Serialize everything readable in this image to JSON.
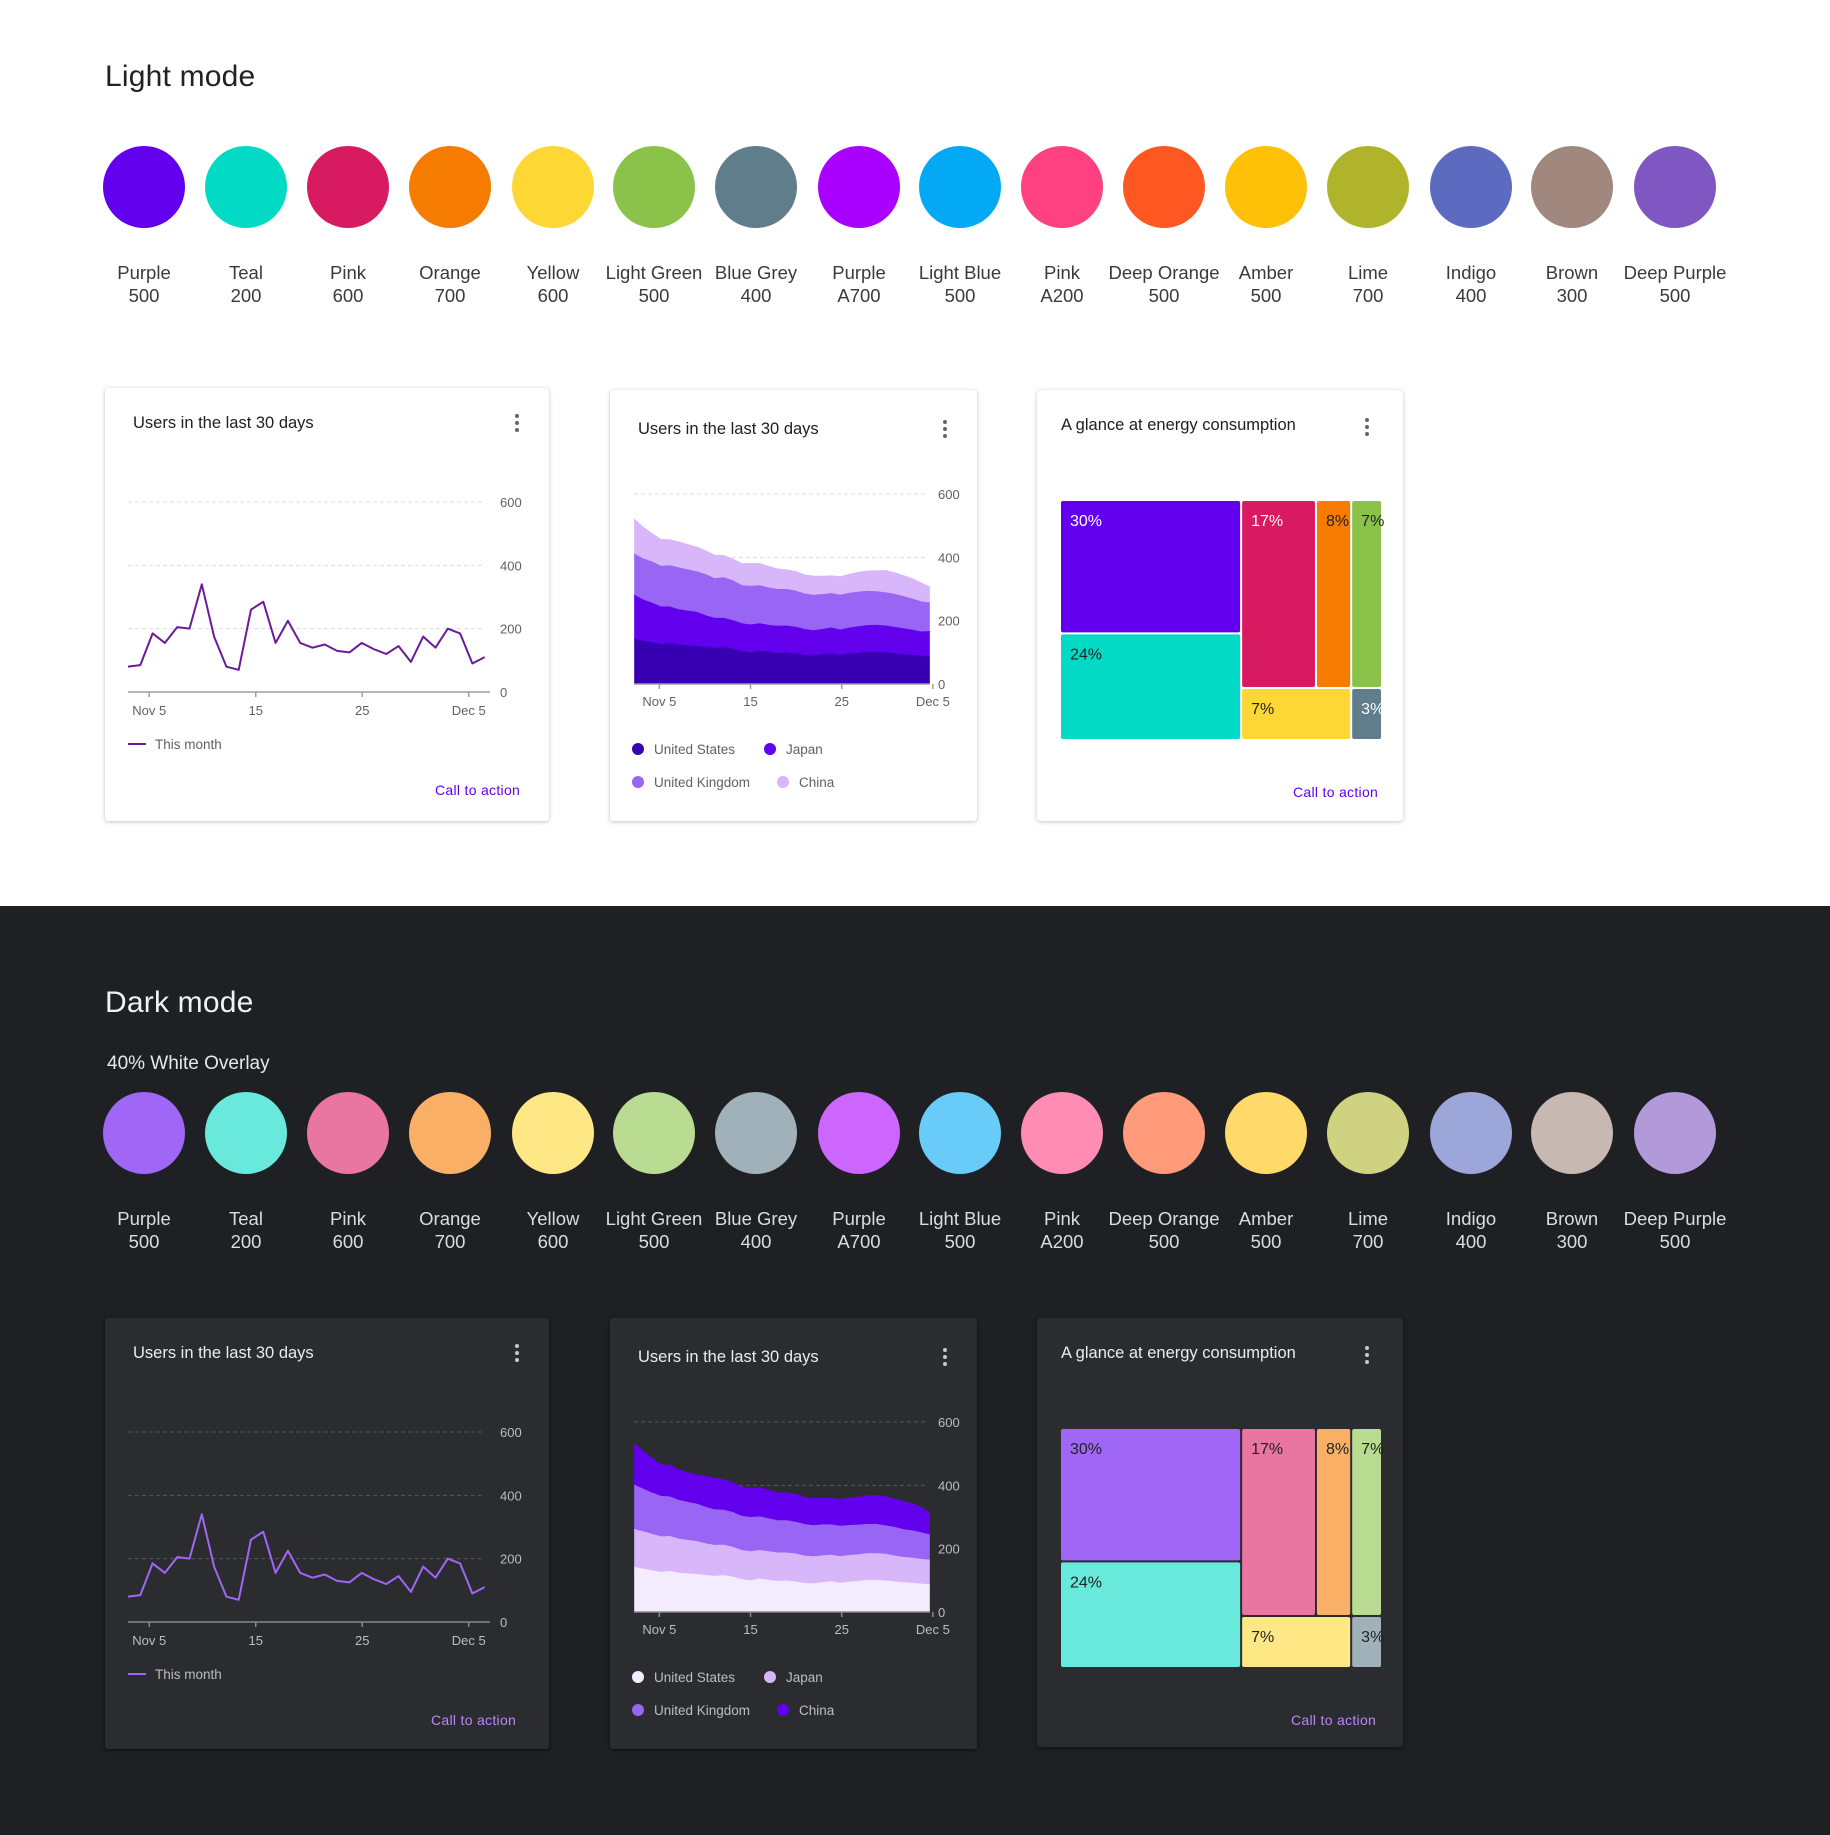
{
  "colors": {
    "light_bg": "#ffffff",
    "dark_bg": "#1f2023",
    "card_dark_bg": "#2b2c30",
    "cta_light": "#6200ee",
    "cta_dark": "#bb86fc"
  },
  "light": {
    "title": "Light mode",
    "swatches": [
      {
        "name": "Purple",
        "shade": "500",
        "color": "#6200ee"
      },
      {
        "name": "Teal",
        "shade": "200",
        "color": "#03dac5"
      },
      {
        "name": "Pink",
        "shade": "600",
        "color": "#d81b60"
      },
      {
        "name": "Orange",
        "shade": "700",
        "color": "#f57c00"
      },
      {
        "name": "Yellow",
        "shade": "600",
        "color": "#fdd835"
      },
      {
        "name": "Light Green",
        "shade": "500",
        "color": "#8bc34a"
      },
      {
        "name": "Blue Grey",
        "shade": "400",
        "color": "#607d8b"
      },
      {
        "name": "Purple",
        "shade": "A700",
        "color": "#aa00ff"
      },
      {
        "name": "Light Blue",
        "shade": "500",
        "color": "#03a9f4"
      },
      {
        "name": "Pink",
        "shade": "A200",
        "color": "#ff4081"
      },
      {
        "name": "Deep Orange",
        "shade": "500",
        "color": "#ff5722"
      },
      {
        "name": "Amber",
        "shade": "500",
        "color": "#ffc107"
      },
      {
        "name": "Lime",
        "shade": "700",
        "color": "#afb42b"
      },
      {
        "name": "Indigo",
        "shade": "400",
        "color": "#5c6bc0"
      },
      {
        "name": "Brown",
        "shade": "300",
        "color": "#a1887f"
      },
      {
        "name": "Deep Purple",
        "shade": "500",
        "color": "#7e57c2"
      }
    ]
  },
  "dark": {
    "title": "Dark mode",
    "overlay_label": "40% White Overlay",
    "swatches": [
      {
        "name": "Purple",
        "shade": "500",
        "color": "#a066f5"
      },
      {
        "name": "Teal",
        "shade": "200",
        "color": "#68e9dc"
      },
      {
        "name": "Pink",
        "shade": "600",
        "color": "#e876a0"
      },
      {
        "name": "Orange",
        "shade": "700",
        "color": "#f9b066"
      },
      {
        "name": "Yellow",
        "shade": "600",
        "color": "#fee886"
      },
      {
        "name": "Light Green",
        "shade": "500",
        "color": "#b9db92"
      },
      {
        "name": "Blue Grey",
        "shade": "400",
        "color": "#a0b1b9"
      },
      {
        "name": "Purple",
        "shade": "A700",
        "color": "#cc66ff"
      },
      {
        "name": "Light Blue",
        "shade": "500",
        "color": "#68cbf8"
      },
      {
        "name": "Pink",
        "shade": "A200",
        "color": "#ff8cb3"
      },
      {
        "name": "Deep Orange",
        "shade": "500",
        "color": "#ff9a7a"
      },
      {
        "name": "Amber",
        "shade": "500",
        "color": "#ffda6a"
      },
      {
        "name": "Lime",
        "shade": "700",
        "color": "#cfd280"
      },
      {
        "name": "Indigo",
        "shade": "400",
        "color": "#9da6d9"
      },
      {
        "name": "Brown",
        "shade": "300",
        "color": "#c7b8b2"
      },
      {
        "name": "Deep Purple",
        "shade": "500",
        "color": "#b29ada"
      }
    ]
  },
  "chart_data": [
    {
      "id": "light-line",
      "type": "line",
      "title": "Users in the last 30 days",
      "x_tick_labels": [
        "Nov 5",
        "15",
        "25",
        "Dec 5"
      ],
      "x_tick_index": [
        2,
        12,
        22,
        32
      ],
      "y_ticks": [
        0,
        200,
        400,
        600
      ],
      "ylim": [
        0,
        600
      ],
      "grid": true,
      "legend_position": "bottom-left",
      "series": [
        {
          "name": "This month",
          "color": "#6a1b9a",
          "values": [
            80,
            85,
            185,
            155,
            205,
            200,
            340,
            175,
            80,
            70,
            260,
            285,
            155,
            225,
            155,
            140,
            150,
            130,
            125,
            155,
            135,
            120,
            145,
            95,
            175,
            140,
            200,
            185,
            90,
            110
          ]
        }
      ],
      "cta": "Call to action"
    },
    {
      "id": "light-area",
      "type": "area",
      "title": "Users in the last 30 days",
      "x_tick_labels": [
        "Nov 5",
        "15",
        "25",
        "Dec 5"
      ],
      "x_tick_index": [
        3,
        13,
        23,
        33
      ],
      "y_ticks": [
        0,
        200,
        400,
        600
      ],
      "ylim": [
        0,
        600
      ],
      "grid": true,
      "stacked": true,
      "legend_position": "bottom-left",
      "series": [
        {
          "name": "United States",
          "color": "#3700b3",
          "values": [
            140,
            135,
            130,
            125,
            128,
            122,
            120,
            118,
            115,
            112,
            115,
            110,
            102,
            98,
            104,
            100,
            96,
            98,
            95,
            90,
            88,
            92,
            95,
            90,
            94,
            96,
            100,
            100,
            98,
            95,
            92,
            90,
            88,
            85
          ]
        },
        {
          "name": "Japan",
          "color": "#6200ee",
          "values": [
            140,
            130,
            125,
            118,
            115,
            112,
            110,
            108,
            100,
            95,
            92,
            90,
            88,
            88,
            86,
            85,
            86,
            85,
            84,
            82,
            80,
            80,
            82,
            80,
            82,
            84,
            84,
            85,
            85,
            84,
            82,
            80,
            76,
            80
          ]
        },
        {
          "name": "United Kingdom",
          "color": "#9965f4",
          "values": [
            130,
            130,
            130,
            128,
            130,
            132,
            130,
            128,
            130,
            125,
            128,
            126,
            120,
            122,
            120,
            118,
            116,
            115,
            114,
            112,
            112,
            110,
            108,
            110,
            110,
            110,
            108,
            106,
            105,
            104,
            102,
            98,
            95,
            90
          ]
        },
        {
          "name": "China",
          "color": "#d7b6f9",
          "values": [
            110,
            100,
            90,
            85,
            82,
            82,
            80,
            78,
            75,
            74,
            70,
            68,
            70,
            72,
            70,
            68,
            65,
            62,
            62,
            60,
            60,
            58,
            56,
            58,
            60,
            62,
            64,
            66,
            70,
            68,
            66,
            64,
            60,
            50
          ]
        }
      ],
      "cta": ""
    },
    {
      "id": "light-treemap",
      "type": "treemap",
      "title": "A glance at energy consumption",
      "cells": [
        {
          "label": "30%",
          "value": 30,
          "color": "#6200ee",
          "text_color": "#ffffff"
        },
        {
          "label": "24%",
          "value": 24,
          "color": "#03dac5",
          "text_color": "#222222"
        },
        {
          "label": "17%",
          "value": 17,
          "color": "#d81b60",
          "text_color": "#ffffff"
        },
        {
          "label": "8%",
          "value": 8,
          "color": "#f57c00",
          "text_color": "#222222"
        },
        {
          "label": "7%",
          "value": 7,
          "color": "#8bc34a",
          "text_color": "#222222"
        },
        {
          "label": "7%",
          "value": 7,
          "color": "#fdd835",
          "text_color": "#222222"
        },
        {
          "label": "3%",
          "value": 3,
          "color": "#607d8b",
          "text_color": "#ffffff"
        }
      ],
      "cta": "Call to action"
    },
    {
      "id": "dark-line",
      "type": "line",
      "title": "Users in the last 30 days",
      "x_tick_labels": [
        "Nov 5",
        "15",
        "25",
        "Dec 5"
      ],
      "x_tick_index": [
        2,
        12,
        22,
        32
      ],
      "y_ticks": [
        0,
        200,
        400,
        600
      ],
      "ylim": [
        0,
        600
      ],
      "grid": true,
      "legend_position": "bottom-left",
      "series": [
        {
          "name": "This month",
          "color": "#a066f5",
          "values": [
            80,
            85,
            185,
            155,
            205,
            200,
            340,
            175,
            80,
            70,
            260,
            285,
            155,
            225,
            155,
            140,
            150,
            130,
            125,
            155,
            135,
            120,
            145,
            95,
            175,
            140,
            200,
            185,
            90,
            110
          ]
        }
      ],
      "cta": "Call to action"
    },
    {
      "id": "dark-area",
      "type": "area",
      "title": "Users in the last 30 days",
      "x_tick_labels": [
        "Nov 5",
        "15",
        "25",
        "Dec 5"
      ],
      "x_tick_index": [
        3,
        13,
        23,
        33
      ],
      "y_ticks": [
        0,
        200,
        400,
        600
      ],
      "ylim": [
        0,
        600
      ],
      "grid": true,
      "stacked": true,
      "legend_position": "bottom-left",
      "series": [
        {
          "name": "United States",
          "color": "#f3ecfd",
          "values": [
            140,
            135,
            130,
            125,
            128,
            122,
            120,
            118,
            115,
            112,
            115,
            110,
            102,
            98,
            104,
            100,
            96,
            98,
            95,
            90,
            88,
            92,
            95,
            90,
            94,
            96,
            100,
            100,
            98,
            95,
            92,
            90,
            88,
            85
          ]
        },
        {
          "name": "Japan",
          "color": "#d7b6f9",
          "values": [
            120,
            118,
            115,
            112,
            110,
            108,
            106,
            104,
            100,
            98,
            96,
            94,
            92,
            92,
            90,
            90,
            90,
            88,
            88,
            86,
            86,
            85,
            84,
            84,
            84,
            84,
            84,
            84,
            84,
            82,
            80,
            80,
            78,
            78
          ]
        },
        {
          "name": "United Kingdom",
          "color": "#9965f4",
          "values": [
            140,
            135,
            130,
            128,
            125,
            122,
            120,
            118,
            115,
            112,
            110,
            110,
            108,
            108,
            106,
            104,
            102,
            102,
            100,
            100,
            98,
            98,
            96,
            96,
            95,
            94,
            92,
            92,
            90,
            90,
            88,
            86,
            84,
            80
          ]
        },
        {
          "name": "China",
          "color": "#6200ee",
          "values": [
            130,
            120,
            110,
            100,
            100,
            96,
            94,
            92,
            98,
            100,
            96,
            94,
            92,
            92,
            92,
            90,
            88,
            88,
            88,
            86,
            86,
            84,
            84,
            84,
            86,
            88,
            90,
            92,
            92,
            90,
            88,
            86,
            80,
            70
          ]
        }
      ],
      "cta": ""
    },
    {
      "id": "dark-treemap",
      "type": "treemap",
      "title": "A glance at energy consumption",
      "cells": [
        {
          "label": "30%",
          "value": 30,
          "color": "#a066f5",
          "text_color": "#222222"
        },
        {
          "label": "24%",
          "value": 24,
          "color": "#68e9dc",
          "text_color": "#222222"
        },
        {
          "label": "17%",
          "value": 17,
          "color": "#e876a0",
          "text_color": "#222222"
        },
        {
          "label": "8%",
          "value": 8,
          "color": "#f9b066",
          "text_color": "#222222"
        },
        {
          "label": "7%",
          "value": 7,
          "color": "#b9db92",
          "text_color": "#222222"
        },
        {
          "label": "7%",
          "value": 7,
          "color": "#fee886",
          "text_color": "#222222"
        },
        {
          "label": "3%",
          "value": 3,
          "color": "#a0b1b9",
          "text_color": "#222222"
        }
      ],
      "cta": "Call to action"
    }
  ]
}
